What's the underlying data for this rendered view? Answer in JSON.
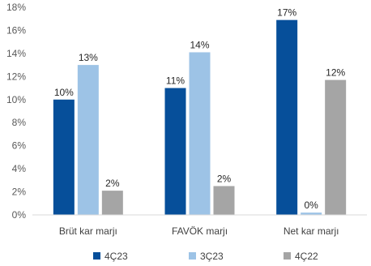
{
  "chart_data": {
    "type": "bar",
    "categories": [
      "Brüt kar marjı",
      "FAVÖK marjı",
      "Net kar marjı"
    ],
    "series": [
      {
        "name": "4Ç23",
        "values": [
          10.0,
          11.0,
          16.9
        ],
        "labels": [
          "10%",
          "11%",
          "17%"
        ],
        "color": "#064F9A"
      },
      {
        "name": "3Ç23",
        "values": [
          13.0,
          14.1,
          0.2
        ],
        "labels": [
          "13%",
          "14%",
          "0%"
        ],
        "color": "#9DC3E6"
      },
      {
        "name": "4Ç22",
        "values": [
          2.1,
          2.5,
          11.7
        ],
        "labels": [
          "2%",
          "2%",
          "12%"
        ],
        "color": "#A5A5A5"
      }
    ],
    "y_ticks": [
      "0%",
      "2%",
      "4%",
      "6%",
      "8%",
      "10%",
      "12%",
      "14%",
      "16%",
      "18%"
    ],
    "ylim": [
      0,
      18
    ],
    "title": "",
    "xlabel": "",
    "ylabel": "",
    "grid": false,
    "legend_position": "bottom"
  }
}
